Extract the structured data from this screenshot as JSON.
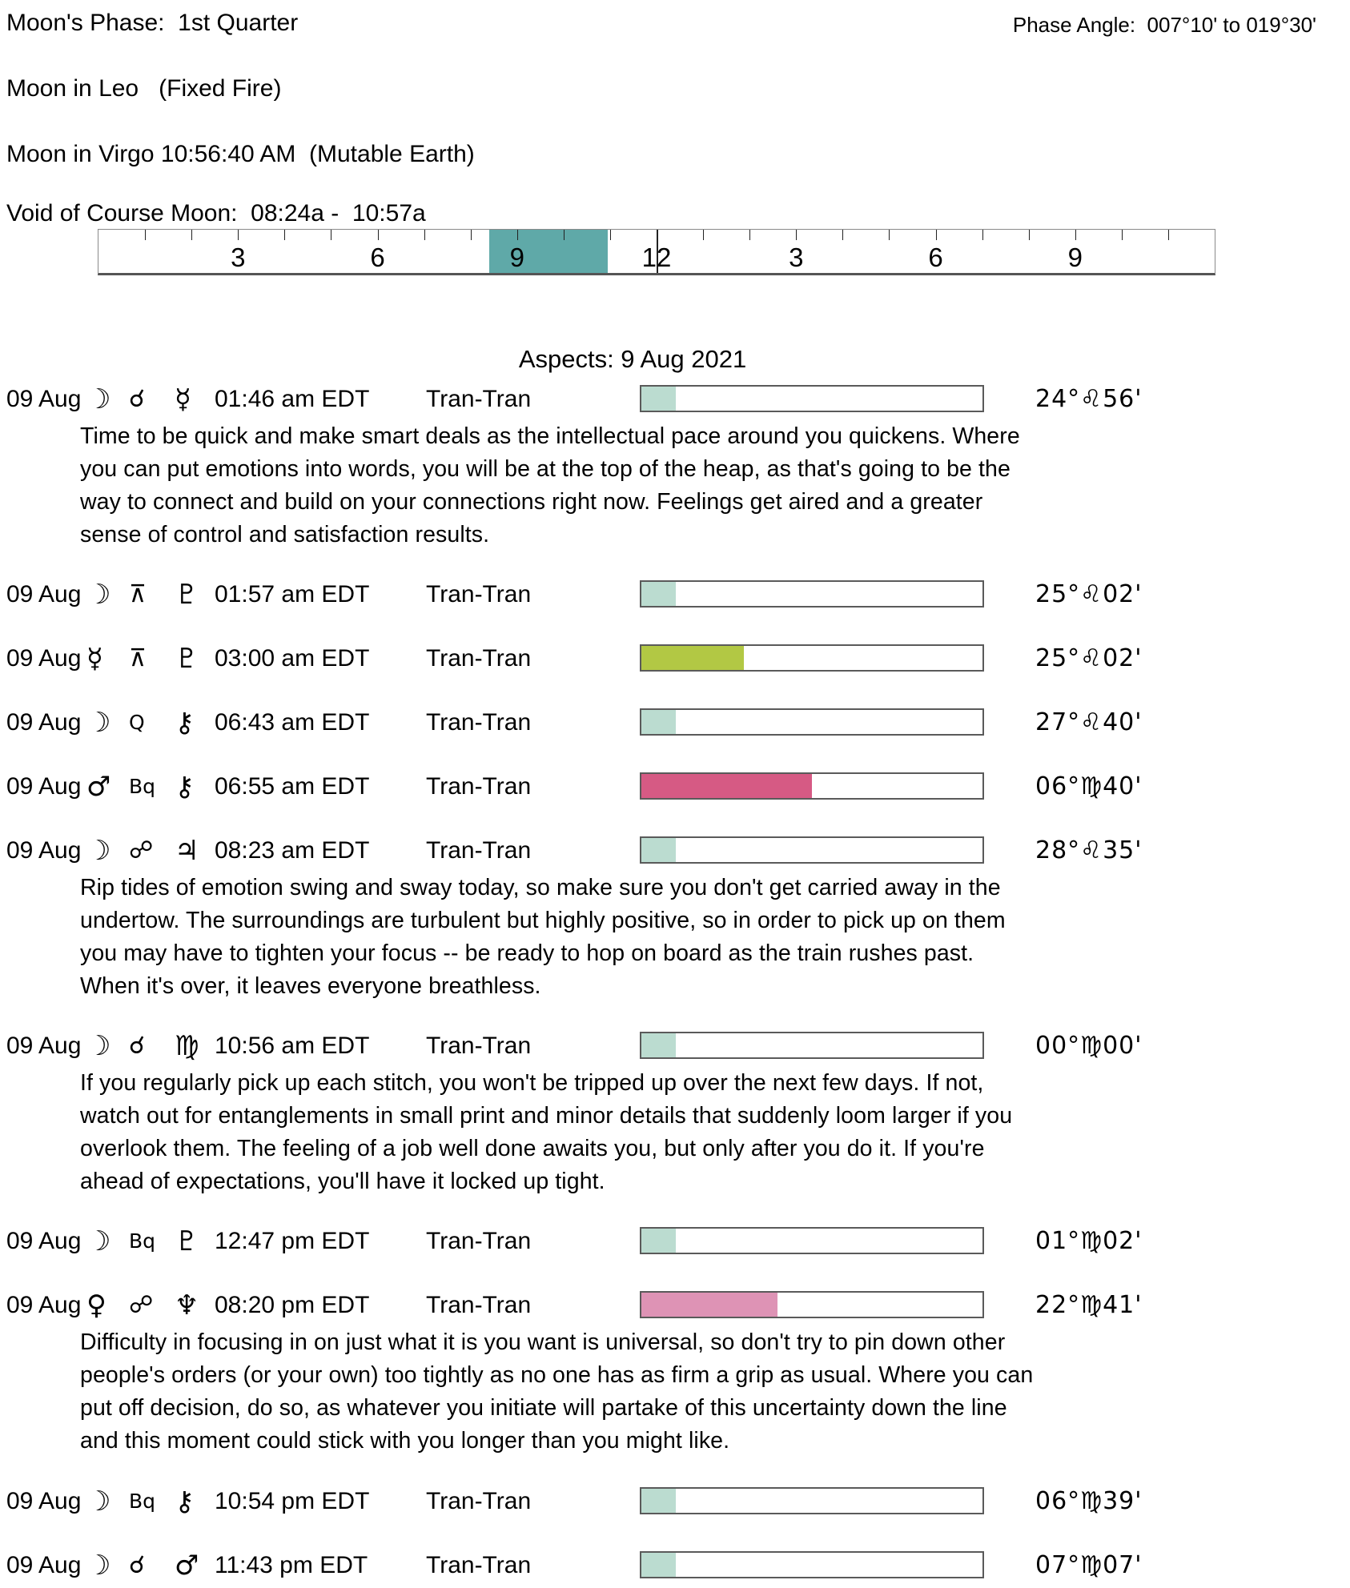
{
  "header": {
    "phase_label": "Moon's Phase:",
    "phase_value": "1st Quarter",
    "phase_line": "Moon's Phase:  1st Quarter",
    "phase_angle": "Phase Angle:  007°10' to 019°30'",
    "moon_sign_line1": "Moon in Leo   (Fixed Fire)",
    "moon_sign_line2": "Moon in Virgo 10:56:40 AM  (Mutable Earth)",
    "void_line": "Void of Course Moon:  08:24a -  10:57a"
  },
  "ruler": {
    "total_hours": 24,
    "hour_tick_interval": 1,
    "tall_tick_hour": 12,
    "labels": [
      {
        "hour": 3,
        "text": "3"
      },
      {
        "hour": 6,
        "text": "6"
      },
      {
        "hour": 9,
        "text": "9"
      },
      {
        "hour": 12,
        "text": "12"
      },
      {
        "hour": 15,
        "text": "3"
      },
      {
        "hour": 18,
        "text": "6"
      },
      {
        "hour": 21,
        "text": "9"
      }
    ],
    "void_band": {
      "start": "08:24a",
      "end": "10:57a",
      "start_hour": 8.4,
      "end_hour": 10.95,
      "color": "#5FA9A8"
    }
  },
  "colors": {
    "bar_teal": "#BBDCD0",
    "bar_green": "#B2C844",
    "bar_magenta": "#D65A84",
    "bar_pink": "#DE93B5",
    "ruler_teal": "#5FA9A8",
    "bar_border": "#5a5a5a"
  },
  "aspects": {
    "title": "Aspects: 9 Aug 2021",
    "rows": [
      {
        "date": "09 Aug",
        "planet1": {
          "name": "moon",
          "glyph": "☽"
        },
        "aspect": {
          "name": "conjunction",
          "glyph": "☌"
        },
        "planet2": {
          "name": "mercury",
          "glyph": "☿"
        },
        "time": "01:46 am EDT",
        "type": "Tran-Tran",
        "bar": {
          "fill_pct": 10,
          "color": "#BBDCD0"
        },
        "degree": "24°♌56'",
        "description": "Time to be quick and make smart deals as the intellectual pace around you quickens. Where you can put emotions into words, you will be at the top of the heap, as that's going to be the way to connect and build on your connections right now. Feelings get aired and a greater sense of control and satisfaction results."
      },
      {
        "date": "09 Aug",
        "planet1": {
          "name": "moon",
          "glyph": "☽"
        },
        "aspect": {
          "name": "quincunx",
          "glyph": "⊼"
        },
        "planet2": {
          "name": "pluto",
          "glyph": "♇"
        },
        "time": "01:57 am EDT",
        "type": "Tran-Tran",
        "bar": {
          "fill_pct": 10,
          "color": "#BBDCD0"
        },
        "degree": "25°♌02'"
      },
      {
        "date": "09 Aug",
        "planet1": {
          "name": "mercury",
          "glyph": "☿"
        },
        "aspect": {
          "name": "quincunx",
          "glyph": "⊼"
        },
        "planet2": {
          "name": "pluto",
          "glyph": "♇"
        },
        "time": "03:00 am EDT",
        "type": "Tran-Tran",
        "bar": {
          "fill_pct": 30,
          "color": "#B2C844"
        },
        "degree": "25°♌02'"
      },
      {
        "date": "09 Aug",
        "planet1": {
          "name": "moon",
          "glyph": "☽"
        },
        "aspect": {
          "name": "quintile",
          "glyph": "Q"
        },
        "planet2": {
          "name": "chiron",
          "glyph": "⚷"
        },
        "time": "06:43 am EDT",
        "type": "Tran-Tran",
        "bar": {
          "fill_pct": 10,
          "color": "#BBDCD0"
        },
        "degree": "27°♌40'"
      },
      {
        "date": "09 Aug",
        "planet1": {
          "name": "mars",
          "glyph": "♂"
        },
        "aspect": {
          "name": "biquintile",
          "glyph": "Bq"
        },
        "planet2": {
          "name": "chiron",
          "glyph": "⚷"
        },
        "time": "06:55 am EDT",
        "type": "Tran-Tran",
        "bar": {
          "fill_pct": 50,
          "color": "#D65A84"
        },
        "degree": "06°♍40'"
      },
      {
        "date": "09 Aug",
        "planet1": {
          "name": "moon",
          "glyph": "☽"
        },
        "aspect": {
          "name": "opposition",
          "glyph": "☍"
        },
        "planet2": {
          "name": "jupiter",
          "glyph": "♃"
        },
        "time": "08:23 am EDT",
        "type": "Tran-Tran",
        "bar": {
          "fill_pct": 10,
          "color": "#BBDCD0"
        },
        "degree": "28°♌35'",
        "description": "Rip tides of emotion swing and sway today, so make sure you don't get carried away in the undertow. The surroundings are turbulent but highly positive, so in order to pick up on them you may have to tighten your focus -- be ready to hop on board as the train rushes past. When it's over, it leaves everyone breathless."
      },
      {
        "date": "09 Aug",
        "planet1": {
          "name": "moon",
          "glyph": "☽"
        },
        "aspect": {
          "name": "conjunction",
          "glyph": "☌"
        },
        "planet2": {
          "name": "virgo",
          "glyph": "♍"
        },
        "time": "10:56 am EDT",
        "type": "Tran-Tran",
        "bar": {
          "fill_pct": 10,
          "color": "#BBDCD0"
        },
        "degree": "00°♍00'",
        "description": "If you regularly pick up each stitch, you won't be tripped up over the next few days. If not, watch out for entanglements in small print and minor details that suddenly loom larger if you overlook them. The feeling of a job well done awaits you, but only after you do it. If you're ahead of expectations, you'll have it locked up tight."
      },
      {
        "date": "09 Aug",
        "planet1": {
          "name": "moon",
          "glyph": "☽"
        },
        "aspect": {
          "name": "biquintile",
          "glyph": "Bq"
        },
        "planet2": {
          "name": "pluto",
          "glyph": "♇"
        },
        "time": "12:47 pm EDT",
        "type": "Tran-Tran",
        "bar": {
          "fill_pct": 10,
          "color": "#BBDCD0"
        },
        "degree": "01°♍02'"
      },
      {
        "date": "09 Aug",
        "planet1": {
          "name": "venus",
          "glyph": "♀"
        },
        "aspect": {
          "name": "opposition",
          "glyph": "☍"
        },
        "planet2": {
          "name": "neptune",
          "glyph": "♆"
        },
        "time": "08:20 pm EDT",
        "type": "Tran-Tran",
        "bar": {
          "fill_pct": 40,
          "color": "#DE93B5"
        },
        "degree": "22°♍41'",
        "description": "Difficulty in focusing in on just what it is you want is universal, so don't try to pin down other people's orders (or your own) too tightly as no one has as firm a grip as usual. Where you can put off decision, do so, as whatever you initiate will partake of this uncertainty down the line and this moment could stick with you longer than you might like."
      },
      {
        "date": "09 Aug",
        "planet1": {
          "name": "moon",
          "glyph": "☽"
        },
        "aspect": {
          "name": "biquintile",
          "glyph": "Bq"
        },
        "planet2": {
          "name": "chiron",
          "glyph": "⚷"
        },
        "time": "10:54 pm EDT",
        "type": "Tran-Tran",
        "bar": {
          "fill_pct": 10,
          "color": "#BBDCD0"
        },
        "degree": "06°♍39'"
      },
      {
        "date": "09 Aug",
        "planet1": {
          "name": "moon",
          "glyph": "☽"
        },
        "aspect": {
          "name": "conjunction",
          "glyph": "☌"
        },
        "planet2": {
          "name": "mars",
          "glyph": "♂"
        },
        "time": "11:43 pm EDT",
        "type": "Tran-Tran",
        "bar": {
          "fill_pct": 10,
          "color": "#BBDCD0"
        },
        "degree": "07°♍07'"
      }
    ]
  }
}
